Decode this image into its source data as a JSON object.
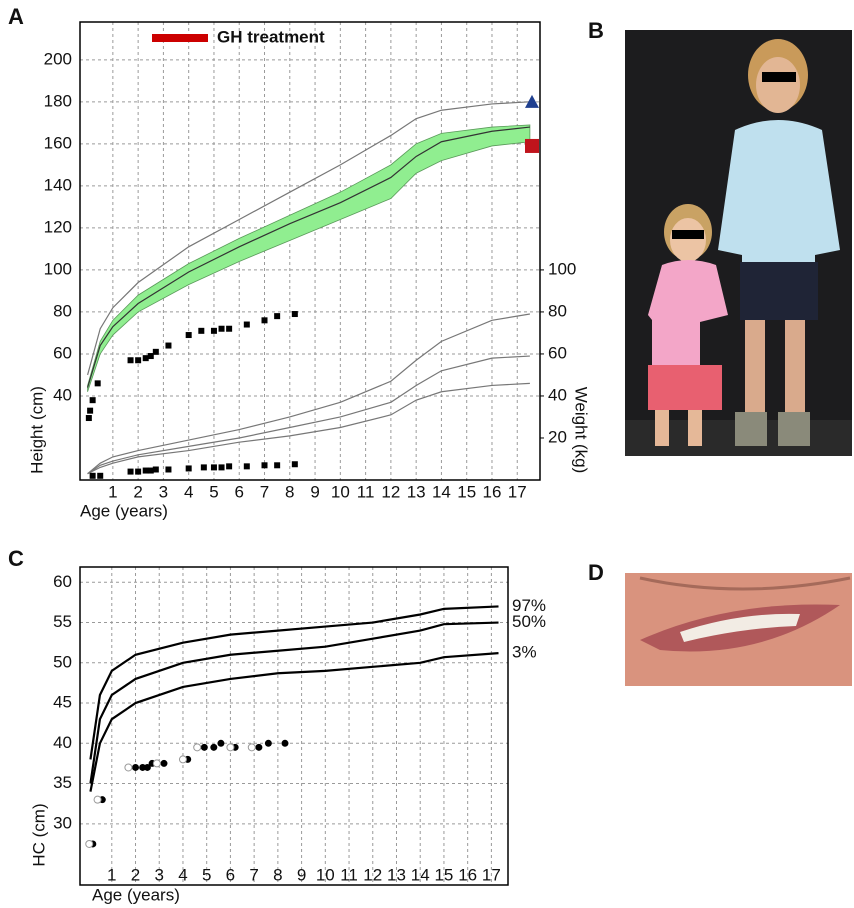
{
  "panel_labels": [
    "A",
    "B",
    "C",
    "D"
  ],
  "chart_data": [
    {
      "type": "line",
      "xlabel": "Age (years)",
      "ylabel": "Height (cm)",
      "y2label": "Weight (kg)",
      "xlim": [
        -0.3,
        17.9
      ],
      "xticks": [
        1,
        2,
        3,
        4,
        5,
        6,
        7,
        8,
        9,
        10,
        11,
        12,
        13,
        14,
        15,
        16,
        17
      ],
      "ylim": [
        0,
        218
      ],
      "yticks": [
        40,
        60,
        80,
        100,
        120,
        140,
        160,
        180,
        200
      ],
      "y2lim": [
        0,
        218
      ],
      "y2ticks": [
        20,
        40,
        60,
        80,
        100
      ],
      "grid": true,
      "legend": [
        {
          "name": "GH treatment",
          "color": "#cc0000"
        }
      ],
      "band": {
        "color": "#90ee90",
        "x": [
          0,
          0.5,
          1,
          2,
          4,
          6,
          8,
          10,
          12,
          13,
          14,
          16,
          17.5
        ],
        "upper": [
          45,
          66,
          76,
          88,
          103,
          115,
          126,
          137,
          150,
          160,
          165,
          168,
          169
        ],
        "lower": [
          42,
          60,
          69,
          80,
          93,
          104,
          114,
          124,
          134,
          146,
          152,
          159,
          161
        ]
      },
      "series": [
        {
          "kind": "line",
          "color": "#777777",
          "x": [
            0,
            0.5,
            1,
            2,
            4,
            6,
            8,
            10,
            12,
            13,
            14,
            16,
            17.5
          ],
          "values": [
            50,
            72,
            82,
            94,
            111,
            124,
            137,
            150,
            164,
            172,
            176,
            179,
            180
          ]
        },
        {
          "kind": "line",
          "color": "#333333",
          "x": [
            0,
            0.5,
            1,
            2,
            4,
            6,
            8,
            10,
            12,
            13,
            14,
            16,
            17.5
          ],
          "values": [
            44,
            64,
            73,
            84,
            99,
            111,
            122,
            132,
            144,
            154,
            161,
            166,
            168
          ]
        },
        {
          "kind": "line",
          "axis": "y2",
          "color": "#777777",
          "x": [
            0,
            0.5,
            1,
            2,
            4,
            6,
            8,
            10,
            12,
            13,
            14,
            16,
            17.5
          ],
          "values": [
            3,
            8,
            11,
            14,
            19,
            24,
            30,
            37,
            47,
            57,
            66,
            76,
            79
          ]
        },
        {
          "kind": "line",
          "axis": "y2",
          "color": "#777777",
          "x": [
            0,
            0.5,
            1,
            2,
            4,
            6,
            8,
            10,
            12,
            13,
            14,
            16,
            17.5
          ],
          "values": [
            3,
            7,
            9,
            12,
            16,
            20,
            25,
            30,
            37,
            45,
            52,
            58,
            59
          ]
        },
        {
          "kind": "line",
          "axis": "y2",
          "color": "#777777",
          "x": [
            0,
            0.5,
            1,
            2,
            4,
            6,
            8,
            10,
            12,
            13,
            14,
            16,
            17.5
          ],
          "values": [
            3,
            6,
            8,
            11,
            14,
            18,
            21,
            25,
            31,
            38,
            42,
            45,
            46
          ]
        },
        {
          "kind": "points",
          "marker": "square",
          "color": "#000000",
          "x": [
            0.05,
            0.1,
            0.2,
            0.4,
            1.7,
            2.0,
            2.3,
            2.5,
            2.7,
            3.2,
            4.0,
            4.5,
            5.0,
            5.3,
            5.6,
            6.3,
            7.0,
            7.5,
            8.2
          ],
          "values": [
            29.5,
            33,
            38,
            46,
            57,
            57,
            58,
            59,
            61,
            64,
            69,
            71,
            71,
            72,
            72,
            74,
            76,
            78,
            79
          ]
        },
        {
          "kind": "points",
          "axis": "y2",
          "marker": "square",
          "color": "#000000",
          "x": [
            0.2,
            0.5,
            1.7,
            2.0,
            2.3,
            2.5,
            2.7,
            3.2,
            4.0,
            4.6,
            5.0,
            5.3,
            5.6,
            6.3,
            7.0,
            7.5,
            8.2
          ],
          "values": [
            2,
            2,
            4,
            4,
            4.5,
            4.5,
            5,
            5,
            5.5,
            6,
            6,
            6,
            6.5,
            6.5,
            7,
            7,
            7.5
          ]
        }
      ],
      "markers": [
        {
          "value": 180,
          "shape": "triangle",
          "color": "#1f3f8f"
        },
        {
          "value": 159,
          "shape": "square",
          "color": "#c0141c"
        }
      ]
    },
    {
      "type": "line",
      "xlabel": "Age (years)",
      "ylabel": "HC (cm)",
      "xlim": [
        -0.34,
        17.7
      ],
      "xticks": [
        1,
        2,
        3,
        4,
        5,
        6,
        7,
        8,
        9,
        10,
        11,
        12,
        13,
        14,
        15,
        16,
        17
      ],
      "ylim": [
        22.4,
        61.9
      ],
      "yticks": [
        30,
        35,
        40,
        45,
        50,
        55,
        60
      ],
      "grid": true,
      "series": [
        {
          "name": "97%",
          "kind": "line",
          "color": "#000000",
          "x": [
            0.1,
            0.5,
            1,
            2,
            4,
            6,
            8,
            10,
            12,
            14,
            15,
            17.3
          ],
          "values": [
            38,
            46,
            49,
            51,
            52.5,
            53.5,
            54,
            54.5,
            55,
            56,
            56.7,
            57
          ]
        },
        {
          "name": "50%",
          "kind": "line",
          "color": "#000000",
          "x": [
            0.1,
            0.5,
            1,
            2,
            4,
            6,
            8,
            10,
            12,
            14,
            15,
            17.3
          ],
          "values": [
            35,
            43,
            46,
            48,
            50,
            51,
            51.5,
            52,
            53,
            54,
            54.8,
            55
          ]
        },
        {
          "name": "3%",
          "kind": "line",
          "color": "#000000",
          "x": [
            0.1,
            0.5,
            1,
            2,
            4,
            6,
            8,
            10,
            12,
            14,
            15,
            17.3
          ],
          "values": [
            34,
            40,
            43,
            45,
            47,
            48,
            48.7,
            49,
            49.5,
            50,
            50.7,
            51.2
          ]
        },
        {
          "kind": "points",
          "marker": "circle",
          "color": "#000000",
          "x": [
            0.2,
            0.6,
            2.0,
            2.3,
            2.5,
            2.7,
            3.2,
            4.2,
            4.9,
            5.3,
            5.6,
            6.2,
            7.2,
            7.6,
            8.3
          ],
          "values": [
            27.5,
            33,
            37,
            37,
            37,
            37.5,
            37.5,
            38,
            39.5,
            39.5,
            40,
            39.5,
            39.5,
            40,
            40
          ]
        },
        {
          "kind": "points",
          "marker": "open-circle",
          "color": "#999999",
          "x": [
            0.05,
            0.4,
            1.7,
            2.9,
            4.0,
            4.6,
            6.0,
            6.9
          ],
          "values": [
            27.5,
            33,
            37,
            37.5,
            38,
            39.5,
            39.5,
            39.5
          ]
        }
      ]
    }
  ]
}
